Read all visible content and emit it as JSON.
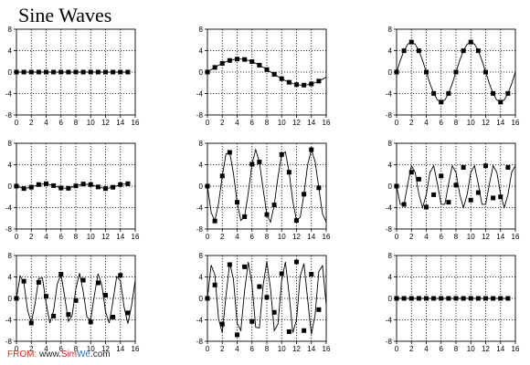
{
  "page": {
    "title": "Sine Waves"
  },
  "footer": {
    "from_label": "FROM:",
    "site_prefix": "www.",
    "site_brand_a": "Sim",
    "site_brand_b": "We",
    "site_suffix": ".com",
    "colors": {
      "from": "#e03010",
      "brand_a": "#d02020",
      "brand_b": "#2a6fd0"
    }
  },
  "chart_data": [
    {
      "type": "line",
      "title": "",
      "xlabel": "",
      "ylabel": "",
      "xlim": [
        0,
        16
      ],
      "ylim": [
        -8,
        8
      ],
      "xticks": [
        0,
        2,
        4,
        6,
        8,
        10,
        12,
        14,
        16
      ],
      "yticks": [
        8,
        4,
        0,
        -4,
        -8
      ],
      "grid": true,
      "series": [
        {
          "role": "samples",
          "marker": "square",
          "x": [
            0,
            1,
            2,
            3,
            4,
            5,
            6,
            7,
            8,
            9,
            10,
            11,
            12,
            13,
            14,
            15
          ],
          "y": [
            0,
            0,
            0,
            0,
            0,
            0,
            0,
            0,
            0,
            0,
            0,
            0,
            0,
            0,
            0,
            0
          ]
        }
      ]
    },
    {
      "type": "line",
      "title": "",
      "xlabel": "",
      "ylabel": "",
      "xlim": [
        0,
        16
      ],
      "ylim": [
        -8,
        8
      ],
      "xticks": [
        0,
        2,
        4,
        6,
        8,
        10,
        12,
        14,
        16
      ],
      "yticks": [
        8,
        4,
        0,
        -4,
        -8
      ],
      "grid": true,
      "series": [
        {
          "role": "continuous",
          "x": [
            0,
            0.5,
            1,
            1.5,
            2,
            2.5,
            3,
            3.5,
            4,
            4.5,
            5,
            5.5,
            6,
            6.5,
            7,
            7.5,
            8,
            8.5,
            9,
            9.5,
            10,
            10.5,
            11,
            11.5,
            12,
            12.5,
            13,
            13.5,
            14,
            14.5,
            15,
            15.5,
            16
          ],
          "y": [
            0,
            0.44,
            0.87,
            1.27,
            1.63,
            1.93,
            2.17,
            2.34,
            2.43,
            2.43,
            2.35,
            2.19,
            1.95,
            1.65,
            1.29,
            0.89,
            0.47,
            0.03,
            -0.41,
            -0.83,
            -1.23,
            -1.6,
            -1.9,
            -2.15,
            -2.33,
            -2.42,
            -2.43,
            -2.36,
            -2.21,
            -1.98,
            -1.68,
            -1.33,
            -0.93
          ]
        },
        {
          "role": "samples",
          "marker": "square",
          "x": [
            0,
            1,
            2,
            3,
            4,
            5,
            6,
            7,
            8,
            9,
            10,
            11,
            12,
            13,
            14,
            15
          ],
          "y": [
            0,
            0.87,
            1.63,
            2.17,
            2.43,
            2.35,
            1.95,
            1.29,
            0.47,
            -0.41,
            -1.23,
            -1.9,
            -2.33,
            -2.43,
            -2.21,
            -1.68
          ]
        }
      ]
    },
    {
      "type": "line",
      "title": "",
      "xlabel": "",
      "ylabel": "",
      "xlim": [
        0,
        16
      ],
      "ylim": [
        -8,
        8
      ],
      "xticks": [
        0,
        2,
        4,
        6,
        8,
        10,
        12,
        14,
        16
      ],
      "yticks": [
        8,
        4,
        0,
        -4,
        -8
      ],
      "grid": true,
      "series": [
        {
          "role": "continuous",
          "x": [
            0,
            0.5,
            1,
            1.5,
            2,
            2.5,
            3,
            3.5,
            4,
            4.5,
            5,
            5.5,
            6,
            6.5,
            7,
            7.5,
            8,
            8.5,
            9,
            9.5,
            10,
            10.5,
            11,
            11.5,
            12,
            12.5,
            13,
            13.5,
            14,
            14.5,
            15,
            15.5,
            16
          ],
          "y": [
            0,
            2.16,
            3.98,
            5.2,
            5.6,
            5.2,
            3.98,
            2.16,
            0,
            -2.16,
            -3.98,
            -5.2,
            -5.6,
            -5.2,
            -3.98,
            -2.16,
            0,
            2.16,
            3.98,
            5.2,
            5.6,
            5.2,
            3.98,
            2.16,
            0,
            -2.16,
            -3.98,
            -5.2,
            -5.6,
            -5.2,
            -3.98,
            -2.16,
            0
          ]
        },
        {
          "role": "samples",
          "marker": "square",
          "x": [
            0,
            1,
            2,
            3,
            4,
            5,
            6,
            7,
            8,
            9,
            10,
            11,
            12,
            13,
            14,
            15
          ],
          "y": [
            0,
            3.98,
            5.6,
            3.98,
            0,
            -3.98,
            -5.6,
            -3.98,
            0,
            3.98,
            5.6,
            3.98,
            0,
            -3.98,
            -5.6,
            -3.98
          ]
        }
      ]
    },
    {
      "type": "line",
      "title": "",
      "xlabel": "",
      "ylabel": "",
      "xlim": [
        0,
        16
      ],
      "ylim": [
        -8,
        8
      ],
      "xticks": [
        0,
        2,
        4,
        6,
        8,
        10,
        12,
        14,
        16
      ],
      "yticks": [
        8,
        4,
        0,
        -4,
        -8
      ],
      "grid": true,
      "series": [
        {
          "role": "samples",
          "marker": "square",
          "x": [
            0,
            1,
            2,
            3,
            4,
            5,
            6,
            7,
            8,
            9,
            10,
            11,
            12,
            13,
            14,
            15
          ],
          "y": [
            0,
            -0.45,
            -0.2,
            0.3,
            0.45,
            0.1,
            -0.35,
            -0.4,
            0.05,
            0.4,
            0.3,
            -0.15,
            -0.45,
            -0.2,
            0.3,
            0.45
          ]
        }
      ]
    },
    {
      "type": "line",
      "title": "",
      "xlabel": "",
      "ylabel": "",
      "xlim": [
        0,
        16
      ],
      "ylim": [
        -8,
        8
      ],
      "xticks": [
        0,
        2,
        4,
        6,
        8,
        10,
        12,
        14,
        16
      ],
      "yticks": [
        8,
        4,
        0,
        -4,
        -8
      ],
      "grid": true,
      "series": [
        {
          "role": "continuous",
          "x": [
            0,
            0.5,
            1,
            1.5,
            2,
            2.5,
            3,
            3.5,
            4,
            4.5,
            5,
            5.5,
            6,
            6.5,
            7,
            7.5,
            8,
            8.5,
            9,
            9.5,
            10,
            10.5,
            11,
            11.5,
            12,
            12.5,
            13,
            13.5,
            14,
            14.5,
            15,
            15.5,
            16
          ],
          "y": [
            0,
            -4.9,
            -6.5,
            -3.2,
            1.9,
            6.0,
            6.3,
            2.4,
            -3.0,
            -6.4,
            -5.7,
            -1.3,
            4.1,
            6.8,
            4.5,
            -0.5,
            -5.3,
            -6.7,
            -3.5,
            1.7,
            5.9,
            6.4,
            2.6,
            -2.8,
            -6.4,
            -5.8,
            -1.5,
            4.0,
            6.8,
            4.6,
            -0.3,
            -5.2,
            -6.7
          ]
        },
        {
          "role": "samples",
          "marker": "square",
          "x": [
            0,
            1,
            2,
            3,
            4,
            5,
            6,
            7,
            8,
            9,
            10,
            11,
            12,
            13,
            14,
            15
          ],
          "y": [
            0,
            -6.5,
            1.9,
            6.3,
            -3.0,
            -5.7,
            4.1,
            4.5,
            -5.3,
            -3.5,
            5.9,
            2.6,
            -6.4,
            -1.5,
            6.8,
            -0.3
          ]
        }
      ]
    },
    {
      "type": "line",
      "title": "",
      "xlabel": "",
      "ylabel": "",
      "xlim": [
        0,
        16
      ],
      "ylim": [
        -8,
        8
      ],
      "xticks": [
        0,
        2,
        4,
        6,
        8,
        10,
        12,
        14,
        16
      ],
      "yticks": [
        8,
        4,
        0,
        -4,
        -8
      ],
      "grid": true,
      "series": [
        {
          "role": "continuous",
          "x": [
            0,
            0.5,
            1,
            1.5,
            2,
            2.5,
            3,
            3.5,
            4,
            4.5,
            5,
            5.5,
            6,
            6.5,
            7,
            7.5,
            8,
            8.5,
            9,
            9.5,
            10,
            10.5,
            11,
            11.5,
            12,
            12.5,
            13,
            13.5,
            14,
            14.5,
            15,
            15.5,
            16
          ],
          "y": [
            0,
            -3.4,
            -3.4,
            0.4,
            3.8,
            2.6,
            -1.5,
            -4.0,
            -1.6,
            2.6,
            3.8,
            0.4,
            -3.4,
            -3.4,
            0.4,
            3.8,
            2.6,
            -1.5,
            -4.0,
            -1.6,
            2.6,
            3.8,
            0.4,
            -3.4,
            -3.4,
            0.4,
            3.8,
            2.6,
            -1.5,
            -4.0,
            -1.6,
            2.6,
            3.8
          ]
        },
        {
          "role": "samples",
          "marker": "square",
          "x": [
            0,
            1,
            2,
            3,
            4,
            5,
            6,
            7,
            8,
            9,
            10,
            11,
            12,
            13,
            14,
            15
          ],
          "y": [
            0,
            -3.4,
            2.6,
            1.3,
            -3.9,
            -1.6,
            1.9,
            -3.0,
            0.2,
            3.5,
            -2.6,
            -1.2,
            3.8,
            -2.2,
            -2.0,
            3.5
          ]
        }
      ]
    },
    {
      "type": "line",
      "title": "",
      "xlabel": "",
      "ylabel": "",
      "xlim": [
        0,
        16
      ],
      "ylim": [
        -8,
        8
      ],
      "xticks": [
        0,
        2,
        4,
        6,
        8,
        10,
        12,
        14,
        16
      ],
      "yticks": [
        8,
        4,
        0,
        -4,
        -8
      ],
      "grid": true,
      "series": [
        {
          "role": "continuous",
          "x": [
            0,
            0.5,
            1,
            1.5,
            2,
            2.5,
            3,
            3.5,
            4,
            4.5,
            5,
            5.5,
            6,
            6.5,
            7,
            7.5,
            8,
            8.5,
            9,
            9.5,
            10,
            10.5,
            11,
            11.5,
            12,
            12.5,
            13,
            13.5,
            14,
            14.5,
            15,
            15.5,
            16
          ],
          "y": [
            0,
            4.2,
            2.9,
            -2.2,
            -4.6,
            -1.0,
            3.7,
            3.8,
            -0.9,
            -4.6,
            -2.3,
            2.7,
            4.5,
            0.3,
            -4.3,
            -3.2,
            1.8,
            4.7,
            1.2,
            -3.5,
            -4.0,
            0.6,
            4.6,
            2.5,
            -2.5,
            -4.6,
            -0.5,
            4.1,
            3.3,
            -1.6,
            -4.7,
            -1.4,
            3.4
          ]
        },
        {
          "role": "samples",
          "marker": "square",
          "x": [
            0,
            1,
            2,
            3,
            4,
            5,
            6,
            7,
            8,
            9,
            10,
            11,
            12,
            13,
            14,
            15
          ],
          "y": [
            0,
            3.2,
            -4.6,
            3.0,
            0.4,
            -3.3,
            4.5,
            -3.0,
            -0.4,
            3.4,
            -4.4,
            2.9,
            0.6,
            -3.5,
            4.3,
            -2.7
          ]
        }
      ]
    },
    {
      "type": "line",
      "title": "",
      "xlabel": "",
      "ylabel": "",
      "xlim": [
        0,
        16
      ],
      "ylim": [
        -8,
        8
      ],
      "xticks": [
        0,
        2,
        4,
        6,
        8,
        10,
        12,
        14,
        16
      ],
      "yticks": [
        8,
        4,
        0,
        -4,
        -8
      ],
      "grid": true,
      "series": [
        {
          "role": "continuous",
          "x": [
            0,
            0.5,
            1,
            1.5,
            2,
            2.5,
            3,
            3.5,
            4,
            4.5,
            5,
            5.5,
            6,
            6.5,
            7,
            7.5,
            8,
            8.5,
            9,
            9.5,
            10,
            10.5,
            11,
            11.5,
            12,
            12.5,
            13,
            13.5,
            14,
            14.5,
            15,
            15.5,
            16
          ],
          "y": [
            0,
            6.2,
            4.4,
            -3.8,
            -6.4,
            0.5,
            6.6,
            3.6,
            -4.6,
            -6.0,
            1.4,
            6.8,
            2.7,
            -5.4,
            -5.5,
            2.4,
            6.9,
            1.8,
            -6.0,
            -4.8,
            3.3,
            6.8,
            0.8,
            -6.4,
            -4.0,
            4.2,
            6.5,
            -0.2,
            -6.7,
            -3.1,
            5.0,
            6.1,
            -1.2
          ]
        },
        {
          "role": "samples",
          "marker": "square",
          "x": [
            0,
            1,
            2,
            3,
            4,
            5,
            6,
            7,
            8,
            9,
            10,
            11,
            12,
            13,
            14,
            15
          ],
          "y": [
            0,
            2.5,
            -4.8,
            6.3,
            -6.8,
            5.9,
            -4.3,
            2.2,
            0.2,
            -2.6,
            4.6,
            -6.2,
            6.8,
            -6.0,
            4.5,
            -2.1
          ]
        }
      ]
    },
    {
      "type": "line",
      "title": "",
      "xlabel": "",
      "ylabel": "",
      "xlim": [
        0,
        16
      ],
      "ylim": [
        -8,
        8
      ],
      "xticks": [
        0,
        2,
        4,
        6,
        8,
        10,
        12,
        14,
        16
      ],
      "yticks": [
        8,
        4,
        0,
        -4,
        -8
      ],
      "grid": true,
      "series": [
        {
          "role": "samples",
          "marker": "square",
          "x": [
            0,
            1,
            2,
            3,
            4,
            5,
            6,
            7,
            8,
            9,
            10,
            11,
            12,
            13,
            14,
            15
          ],
          "y": [
            0,
            0,
            0,
            0,
            0,
            0,
            0,
            0,
            0,
            0,
            0,
            0,
            0,
            0,
            0,
            0
          ]
        }
      ]
    }
  ]
}
